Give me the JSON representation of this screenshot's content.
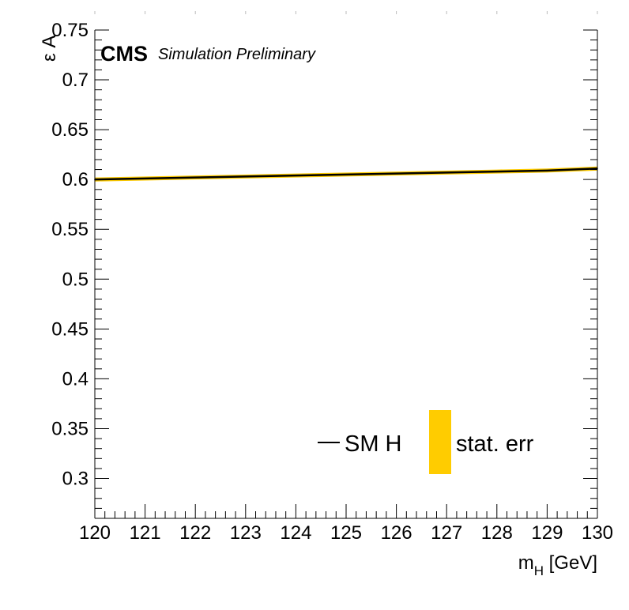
{
  "chart_data": {
    "type": "line",
    "xlabel": "m",
    "xlabel_sub": "H",
    "xlabel_unit": " [GeV]",
    "ylabel": "ε A",
    "xlim": [
      120,
      130
    ],
    "ylim": [
      0.26,
      0.75
    ],
    "x_ticks": [
      "120",
      "121",
      "122",
      "123",
      "124",
      "125",
      "126",
      "127",
      "128",
      "129",
      "130"
    ],
    "y_ticks": [
      "0.3",
      "0.35",
      "0.4",
      "0.45",
      "0.5",
      "0.55",
      "0.6",
      "0.65",
      "0.7",
      "0.75"
    ],
    "experiment_label": "CMS",
    "experiment_sublabel": "Simulation Preliminary",
    "series": [
      {
        "name": "SM H",
        "x": [
          120,
          121,
          122,
          123,
          124,
          125,
          126,
          127,
          128,
          129,
          130
        ],
        "values": [
          0.6,
          0.601,
          0.602,
          0.603,
          0.604,
          0.605,
          0.606,
          0.607,
          0.608,
          0.609,
          0.611
        ],
        "color": "#000000"
      }
    ],
    "band": {
      "name": "stat. err",
      "x": [
        120,
        121,
        122,
        123,
        124,
        125,
        126,
        127,
        128,
        129,
        130
      ],
      "lower": [
        0.598,
        0.599,
        0.6,
        0.601,
        0.602,
        0.603,
        0.604,
        0.605,
        0.606,
        0.607,
        0.609
      ],
      "upper": [
        0.602,
        0.603,
        0.604,
        0.605,
        0.606,
        0.607,
        0.608,
        0.609,
        0.61,
        0.611,
        0.613
      ],
      "color": "#ffcc00"
    },
    "legend_position": "bottom-right",
    "grid": false
  }
}
